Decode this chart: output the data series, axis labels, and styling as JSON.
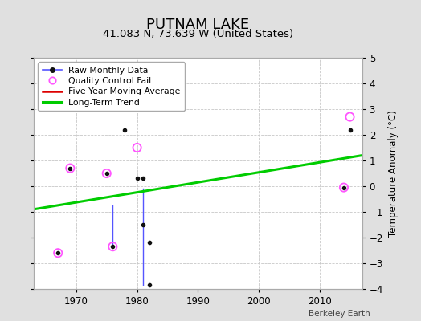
{
  "title": "PUTNAM LAKE",
  "subtitle": "41.083 N, 73.639 W (United States)",
  "ylabel": "Temperature Anomaly (°C)",
  "watermark": "Berkeley Earth",
  "xlim": [
    1963,
    2017
  ],
  "ylim": [
    -4,
    5
  ],
  "yticks": [
    -4,
    -3,
    -2,
    -1,
    0,
    1,
    2,
    3,
    4,
    5
  ],
  "xticks": [
    1970,
    1980,
    1990,
    2000,
    2010
  ],
  "plot_bg": "#ffffff",
  "outer_bg": "#e0e0e0",
  "raw_dots": {
    "x": [
      1967,
      1969,
      1975,
      1976,
      1978,
      1980,
      1981,
      1981,
      1982,
      1982,
      2014,
      2015
    ],
    "y": [
      -2.6,
      0.7,
      0.5,
      -2.35,
      2.2,
      0.3,
      0.3,
      -1.5,
      -2.2,
      -3.85,
      -0.05,
      2.2
    ]
  },
  "blue_segments": [
    {
      "x": [
        1976,
        1976
      ],
      "y": [
        -0.75,
        -2.35
      ]
    },
    {
      "x": [
        1981,
        1981
      ],
      "y": [
        -0.1,
        -3.85
      ]
    }
  ],
  "qc_fail": {
    "x": [
      1967,
      1969,
      1975,
      1976,
      1980,
      2014,
      2015
    ],
    "y": [
      -2.6,
      0.7,
      0.5,
      -2.35,
      1.5,
      -0.05,
      2.7
    ]
  },
  "trend": {
    "x": [
      1963,
      2017
    ],
    "y": [
      -0.9,
      1.2
    ],
    "color": "#00cc00",
    "linewidth": 2.2
  },
  "raw_line_color": "#5555ff",
  "raw_marker_color": "#111111",
  "qc_color": "#ff55ff",
  "grid_color": "#c8c8c8",
  "title_fontsize": 13,
  "subtitle_fontsize": 9.5,
  "tick_fontsize": 8.5,
  "ylabel_fontsize": 8.5
}
